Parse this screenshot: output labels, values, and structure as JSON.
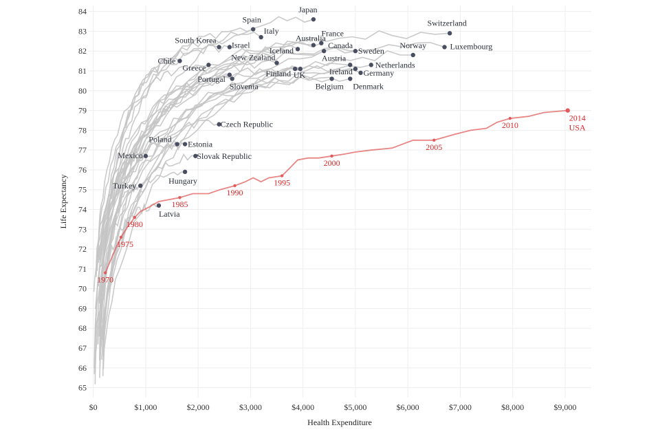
{
  "chart_data": {
    "type": "line",
    "xlabel": "Health Expenditure",
    "ylabel": "Life Expectancy",
    "xlim": [
      -100,
      9500
    ],
    "ylim": [
      64.5,
      84.3
    ],
    "x_ticks": [
      0,
      1000,
      2000,
      3000,
      4000,
      5000,
      6000,
      7000,
      8000,
      9000
    ],
    "x_tick_labels": [
      "$0",
      "$1,000",
      "$2,000",
      "$3,000",
      "$4,000",
      "$5,000",
      "$6,000",
      "$7,000",
      "$8,000",
      "$9,000"
    ],
    "y_ticks": [
      65,
      66,
      67,
      68,
      69,
      70,
      71,
      72,
      73,
      74,
      75,
      76,
      77,
      78,
      79,
      80,
      81,
      82,
      83,
      84
    ],
    "y_tick_labels": [
      "65",
      "66",
      "67",
      "68",
      "69",
      "70",
      "71",
      "72",
      "73",
      "74",
      "75",
      "76",
      "77",
      "78",
      "79",
      "80",
      "81",
      "82",
      "83",
      "84"
    ],
    "grid": true,
    "colors": {
      "usa": "#e05c5c",
      "usa_label": "#d62728",
      "others": "#c4c4c4",
      "dot": "#4a4e61"
    },
    "usa": {
      "name": "USA",
      "points": [
        [
          230,
          70.8
        ],
        [
          310,
          71.3
        ],
        [
          420,
          72.0
        ],
        [
          530,
          72.6
        ],
        [
          650,
          73.1
        ],
        [
          790,
          73.6
        ],
        [
          900,
          73.9
        ],
        [
          1050,
          74.1
        ],
        [
          1250,
          74.4
        ],
        [
          1450,
          74.5
        ],
        [
          1650,
          74.6
        ],
        [
          1900,
          74.8
        ],
        [
          2200,
          74.8
        ],
        [
          2420,
          75.0
        ],
        [
          2700,
          75.2
        ],
        [
          2900,
          75.4
        ],
        [
          3050,
          75.6
        ],
        [
          3200,
          75.4
        ],
        [
          3350,
          75.6
        ],
        [
          3600,
          75.7
        ],
        [
          3750,
          76.1
        ],
        [
          3900,
          76.5
        ],
        [
          4100,
          76.6
        ],
        [
          4300,
          76.6
        ],
        [
          4550,
          76.7
        ],
        [
          4800,
          76.8
        ],
        [
          5000,
          76.9
        ],
        [
          5300,
          77.0
        ],
        [
          5700,
          77.1
        ],
        [
          6100,
          77.5
        ],
        [
          6500,
          77.5
        ],
        [
          6900,
          77.8
        ],
        [
          7200,
          78.0
        ],
        [
          7500,
          78.1
        ],
        [
          7700,
          78.4
        ],
        [
          7950,
          78.6
        ],
        [
          8300,
          78.7
        ],
        [
          8600,
          78.9
        ],
        [
          9050,
          79.0
        ]
      ],
      "year_labels": [
        {
          "label": "1970",
          "x": 230,
          "y": 70.8
        },
        {
          "label": "1975",
          "x": 530,
          "y": 72.6
        },
        {
          "label": "1980",
          "x": 790,
          "y": 73.6
        },
        {
          "label": "1985",
          "x": 1650,
          "y": 74.6
        },
        {
          "label": "1990",
          "x": 2700,
          "y": 75.2
        },
        {
          "label": "1995",
          "x": 3600,
          "y": 75.7
        },
        {
          "label": "2000",
          "x": 4550,
          "y": 76.7
        },
        {
          "label": "2005",
          "x": 6500,
          "y": 77.5
        },
        {
          "label": "2010",
          "x": 7950,
          "y": 78.6
        },
        {
          "label": "2014",
          "x": 9050,
          "y": 79.0
        }
      ]
    },
    "countries": [
      {
        "name": "Japan",
        "end": [
          4200,
          83.6
        ]
      },
      {
        "name": "Spain",
        "end": [
          3050,
          83.1
        ]
      },
      {
        "name": "Italy",
        "end": [
          3200,
          82.7
        ]
      },
      {
        "name": "Switzerland",
        "end": [
          6800,
          82.9
        ]
      },
      {
        "name": "South Korea",
        "end": [
          2400,
          82.2
        ]
      },
      {
        "name": "Israel",
        "end": [
          2600,
          82.2
        ]
      },
      {
        "name": "France",
        "end": [
          4350,
          82.4
        ]
      },
      {
        "name": "Australia",
        "end": [
          4200,
          82.3
        ]
      },
      {
        "name": "Canada",
        "end": [
          4400,
          82.0
        ]
      },
      {
        "name": "Iceland",
        "end": [
          3900,
          82.1
        ]
      },
      {
        "name": "Luxembourg",
        "end": [
          6700,
          82.2
        ]
      },
      {
        "name": "Norway",
        "end": [
          6100,
          81.8
        ]
      },
      {
        "name": "Sweden",
        "end": [
          5000,
          82.0
        ]
      },
      {
        "name": "Chile",
        "end": [
          1650,
          81.5
        ]
      },
      {
        "name": "New Zealand",
        "end": [
          3500,
          81.4
        ]
      },
      {
        "name": "Greece",
        "end": [
          2200,
          81.3
        ]
      },
      {
        "name": "Austria",
        "end": [
          4900,
          81.3
        ]
      },
      {
        "name": "Netherlands",
        "end": [
          5300,
          81.3
        ]
      },
      {
        "name": "Finland",
        "end": [
          3850,
          81.1
        ]
      },
      {
        "name": "UK",
        "end": [
          3950,
          81.1
        ]
      },
      {
        "name": "Ireland",
        "end": [
          5000,
          81.1
        ]
      },
      {
        "name": "Portugal",
        "end": [
          2600,
          80.8
        ]
      },
      {
        "name": "Germany",
        "end": [
          5100,
          80.9
        ]
      },
      {
        "name": "Slovenia",
        "end": [
          2650,
          80.6
        ]
      },
      {
        "name": "Belgium",
        "end": [
          4550,
          80.6
        ]
      },
      {
        "name": "Denmark",
        "end": [
          4900,
          80.6
        ]
      },
      {
        "name": "Czech Republic",
        "end": [
          2400,
          78.3
        ]
      },
      {
        "name": "Poland",
        "end": [
          1600,
          77.3
        ]
      },
      {
        "name": "Estonia",
        "end": [
          1750,
          77.3
        ]
      },
      {
        "name": "Mexico",
        "end": [
          1000,
          76.7
        ]
      },
      {
        "name": "Slovak Republic",
        "end": [
          1950,
          76.7
        ]
      },
      {
        "name": "Hungary",
        "end": [
          1750,
          75.9
        ]
      },
      {
        "name": "Turkey",
        "end": [
          900,
          75.2
        ]
      },
      {
        "name": "Latvia",
        "end": [
          1250,
          74.2
        ]
      }
    ]
  }
}
